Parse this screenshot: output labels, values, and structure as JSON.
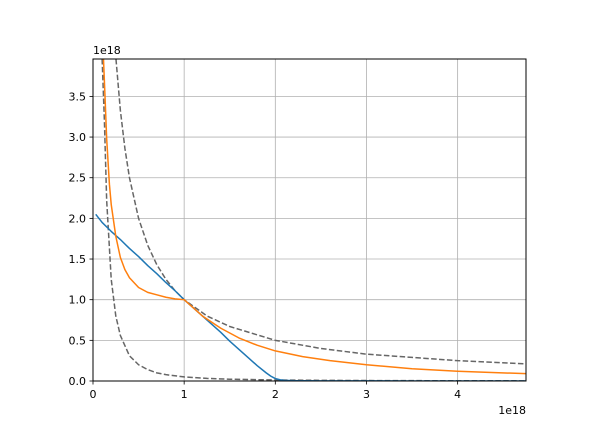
{
  "chart_data": {
    "type": "line",
    "title": "",
    "xlabel": "",
    "ylabel": "",
    "xlim": [
      0,
      4.75
    ],
    "ylim": [
      0,
      3.96
    ],
    "x_offset_text": "1e18",
    "y_offset_text": "1e18",
    "grid": true,
    "x_ticks": [
      0,
      1,
      2,
      3,
      4
    ],
    "x_tick_labels": [
      "0",
      "1",
      "2",
      "3",
      "4"
    ],
    "y_ticks": [
      0.0,
      0.5,
      1.0,
      1.5,
      2.0,
      2.5,
      3.0,
      3.5
    ],
    "y_tick_labels": [
      "0.0",
      "0.5",
      "1.0",
      "1.5",
      "2.0",
      "2.5",
      "3.0",
      "3.5"
    ],
    "series": [
      {
        "color": "#1f77b4",
        "linestyle": "solid",
        "x": [
          0.03,
          0.1,
          0.2,
          0.3,
          0.4,
          0.5,
          0.6,
          0.7,
          0.8,
          0.9,
          1.0,
          1.1,
          1.2,
          1.3,
          1.4,
          1.5,
          1.6,
          1.7,
          1.8,
          1.9,
          1.95,
          2.0,
          2.05,
          2.1,
          2.2,
          2.5,
          3.0,
          3.5,
          4.0,
          4.75
        ],
        "y": [
          2.05,
          1.95,
          1.84,
          1.74,
          1.63,
          1.53,
          1.42,
          1.32,
          1.21,
          1.11,
          1.0,
          0.9,
          0.8,
          0.7,
          0.6,
          0.49,
          0.39,
          0.29,
          0.19,
          0.1,
          0.06,
          0.03,
          0.015,
          0.008,
          0.004,
          0.002,
          0.001,
          0.0005,
          0.0002,
          0.0001
        ]
      },
      {
        "color": "#ff7f0e",
        "linestyle": "solid",
        "x": [
          0.115,
          0.13,
          0.15,
          0.18,
          0.2,
          0.25,
          0.3,
          0.35,
          0.4,
          0.5,
          0.6,
          0.7,
          0.8,
          0.9,
          1.0,
          1.2,
          1.4,
          1.6,
          1.8,
          2.0,
          2.3,
          2.6,
          3.0,
          3.5,
          4.0,
          4.75
        ],
        "y": [
          3.96,
          3.55,
          2.98,
          2.42,
          2.17,
          1.78,
          1.52,
          1.37,
          1.27,
          1.15,
          1.09,
          1.06,
          1.03,
          1.01,
          1.0,
          0.8,
          0.65,
          0.53,
          0.44,
          0.37,
          0.3,
          0.25,
          0.2,
          0.15,
          0.12,
          0.09
        ]
      },
      {
        "color": "#666666",
        "linestyle": "dashed",
        "x": [
          0.252,
          0.3,
          0.35,
          0.4,
          0.5,
          0.6,
          0.7,
          0.8,
          0.9,
          1.0,
          1.25,
          1.5,
          2.0,
          2.5,
          3.0,
          3.5,
          4.0,
          4.75
        ],
        "y": [
          3.96,
          3.33,
          2.86,
          2.5,
          2.0,
          1.67,
          1.43,
          1.25,
          1.11,
          1.0,
          0.8,
          0.67,
          0.5,
          0.4,
          0.33,
          0.29,
          0.25,
          0.21
        ]
      },
      {
        "color": "#666666",
        "linestyle": "dashed",
        "x": [
          0.1,
          0.125,
          0.15,
          0.2,
          0.25,
          0.3,
          0.4,
          0.5,
          0.6,
          0.7,
          0.8,
          1.0,
          1.25,
          1.5,
          2.0,
          2.5,
          3.0,
          3.5,
          4.0,
          4.75
        ],
        "y": [
          3.96,
          3.2,
          2.22,
          1.25,
          0.8,
          0.56,
          0.31,
          0.2,
          0.14,
          0.1,
          0.078,
          0.05,
          0.032,
          0.022,
          0.0125,
          0.008,
          0.0056,
          0.0041,
          0.0031,
          0.0022
        ]
      }
    ]
  }
}
